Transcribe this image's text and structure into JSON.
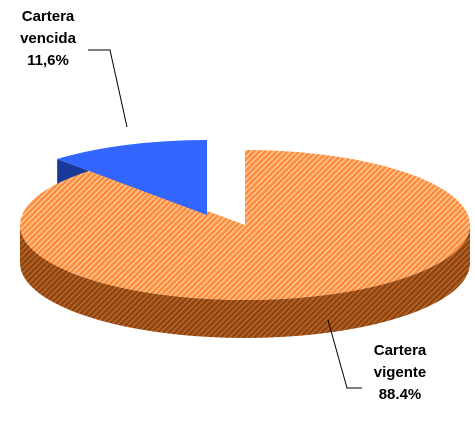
{
  "chart_data": {
    "type": "pie",
    "categories": [
      "Cartera vencida",
      "Cartera vigente"
    ],
    "values": [
      11.6,
      88.4
    ],
    "value_labels": [
      "11,6%",
      "88.4%"
    ],
    "colors": [
      "#3366ff",
      "#ff8c3c"
    ]
  }
}
